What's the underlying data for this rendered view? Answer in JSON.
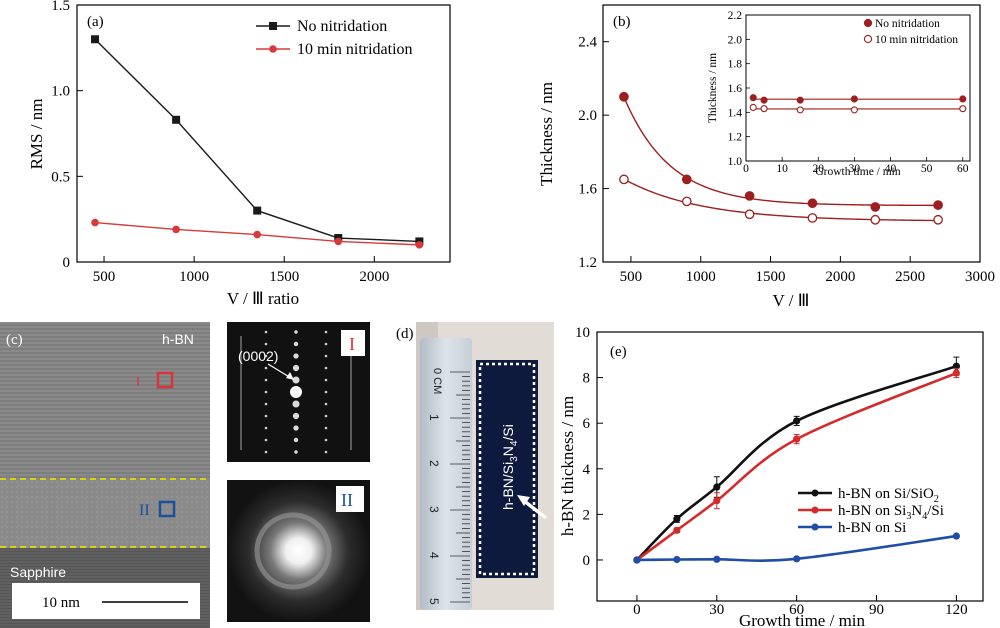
{
  "panel_a": {
    "letter": "(a)",
    "xlabel": "V / Ⅲ ratio",
    "ylabel": "RMS / nm"
  },
  "panel_b": {
    "letter": "(b)",
    "xlabel": "V / Ⅲ",
    "ylabel": "Thickness / nm",
    "inset_xlabel": "Growth time / min",
    "inset_ylabel": "Thickness / nm"
  },
  "panel_c": {
    "letter": "(c)",
    "material_label": "h-BN",
    "region_1": "I",
    "region_2": "II",
    "substrate_label": "Sapphire",
    "scale_bar": "10 nm",
    "diffraction_spot": "(0002)",
    "inset_1_label": "I",
    "inset_2_label": "II",
    "colors": {
      "region_1": "#d8343c",
      "region_2": "#1c4f9c",
      "dashed_line": "#e2e000"
    }
  },
  "panel_d": {
    "letter": "(d)",
    "ruler_unit": "0 CM",
    "ruler_numbers": [
      "1",
      "2",
      "3",
      "4",
      "5"
    ],
    "sample_label_parts": [
      "h-BN/Si",
      "3",
      "N",
      "4",
      "/Si"
    ],
    "colors": {
      "sample": "#0d1a3d"
    }
  },
  "panel_e": {
    "letter": "(e)",
    "xlabel": "Growth time / min",
    "ylabel": "h-BN thickness / nm",
    "legend_parts": [
      [
        "h-BN on Si/SiO",
        "2",
        ""
      ],
      [
        "h-BN on Si",
        "3",
        "N",
        "4",
        "/Si"
      ],
      [
        "h-BN on Si"
      ]
    ]
  },
  "chart_data": [
    {
      "id": "a",
      "type": "line",
      "xlim": [
        350,
        2420
      ],
      "ylim": [
        0,
        1.5
      ],
      "xticks": [
        "500",
        "1000",
        "1500",
        "2000"
      ],
      "yticks": [
        "0",
        "0.5",
        "1.0",
        "1.5"
      ],
      "legend_position": "top-right",
      "series": [
        {
          "name": "No nitridation",
          "color": "#1a1a1a",
          "marker": "square",
          "x": [
            450,
            900,
            1350,
            1800,
            2250
          ],
          "y": [
            1.3,
            0.83,
            0.3,
            0.14,
            0.12
          ]
        },
        {
          "name": "10 min nitridation",
          "color": "#d83a3a",
          "marker": "circle",
          "x": [
            450,
            900,
            1350,
            1800,
            2250
          ],
          "y": [
            0.23,
            0.19,
            0.16,
            0.12,
            0.1
          ]
        }
      ]
    },
    {
      "id": "b",
      "type": "scatter",
      "xlim": [
        300,
        3000
      ],
      "ylim": [
        1.2,
        2.6
      ],
      "xticks": [
        "500",
        "1000",
        "1500",
        "2000",
        "2500",
        "3000"
      ],
      "yticks": [
        "1.2",
        "1.6",
        "2.0",
        "2.4"
      ],
      "series": [
        {
          "name": "No nitridation",
          "color": "#9e1f1f",
          "marker": "filled-circle",
          "x": [
            450,
            900,
            1350,
            1800,
            2250,
            2700
          ],
          "y": [
            2.1,
            1.65,
            1.56,
            1.52,
            1.5,
            1.51
          ]
        },
        {
          "name": "10 min nitridation",
          "color": "#9e1f1f",
          "marker": "open-circle",
          "x": [
            450,
            900,
            1350,
            1800,
            2250,
            2700
          ],
          "y": [
            1.65,
            1.53,
            1.46,
            1.44,
            1.43,
            1.43
          ]
        }
      ],
      "inset": {
        "type": "scatter",
        "xlim": [
          0,
          62
        ],
        "ylim": [
          1.0,
          2.2
        ],
        "xticks": [
          "0",
          "10",
          "20",
          "30",
          "40",
          "50",
          "60"
        ],
        "yticks": [
          "1.0",
          "1.2",
          "1.4",
          "1.6",
          "1.8",
          "2.0",
          "2.2"
        ],
        "legend_position": "top-right",
        "series": [
          {
            "name": "No nitridation",
            "color": "#9e1f1f",
            "marker": "filled-circle",
            "x": [
              2,
              5,
              15,
              30,
              60
            ],
            "y": [
              1.52,
              1.5,
              1.5,
              1.51,
              1.51
            ]
          },
          {
            "name": "10 min nitridation",
            "color": "#9e1f1f",
            "marker": "open-circle",
            "x": [
              2,
              5,
              15,
              30,
              60
            ],
            "y": [
              1.44,
              1.43,
              1.42,
              1.42,
              1.43
            ]
          }
        ]
      }
    },
    {
      "id": "e",
      "type": "line",
      "xlim": [
        -15,
        130
      ],
      "ylim": [
        -1.8,
        10
      ],
      "xticks": [
        "0",
        "30",
        "60",
        "90",
        "120"
      ],
      "yticks": [
        "0",
        "2",
        "4",
        "6",
        "8",
        "10"
      ],
      "legend_position": "center-right",
      "series": [
        {
          "name": "h-BN on Si/SiO2",
          "color": "#111111",
          "x": [
            0,
            15,
            30,
            60,
            120
          ],
          "y": [
            0,
            1.8,
            3.2,
            6.1,
            8.5
          ],
          "err": [
            0,
            0.15,
            0.45,
            0.2,
            0.4
          ]
        },
        {
          "name": "h-BN on Si3N4/Si",
          "color": "#d42a2a",
          "x": [
            0,
            15,
            30,
            60,
            120
          ],
          "y": [
            0,
            1.3,
            2.6,
            5.3,
            8.2
          ],
          "err": [
            0,
            0.1,
            0.35,
            0.2,
            0.2
          ]
        },
        {
          "name": "h-BN on Si",
          "color": "#1f4ea8",
          "x": [
            0,
            15,
            30,
            60,
            120
          ],
          "y": [
            0,
            0.02,
            0.03,
            0.05,
            1.05
          ],
          "err": [
            0,
            0,
            0,
            0,
            0
          ]
        }
      ]
    }
  ]
}
